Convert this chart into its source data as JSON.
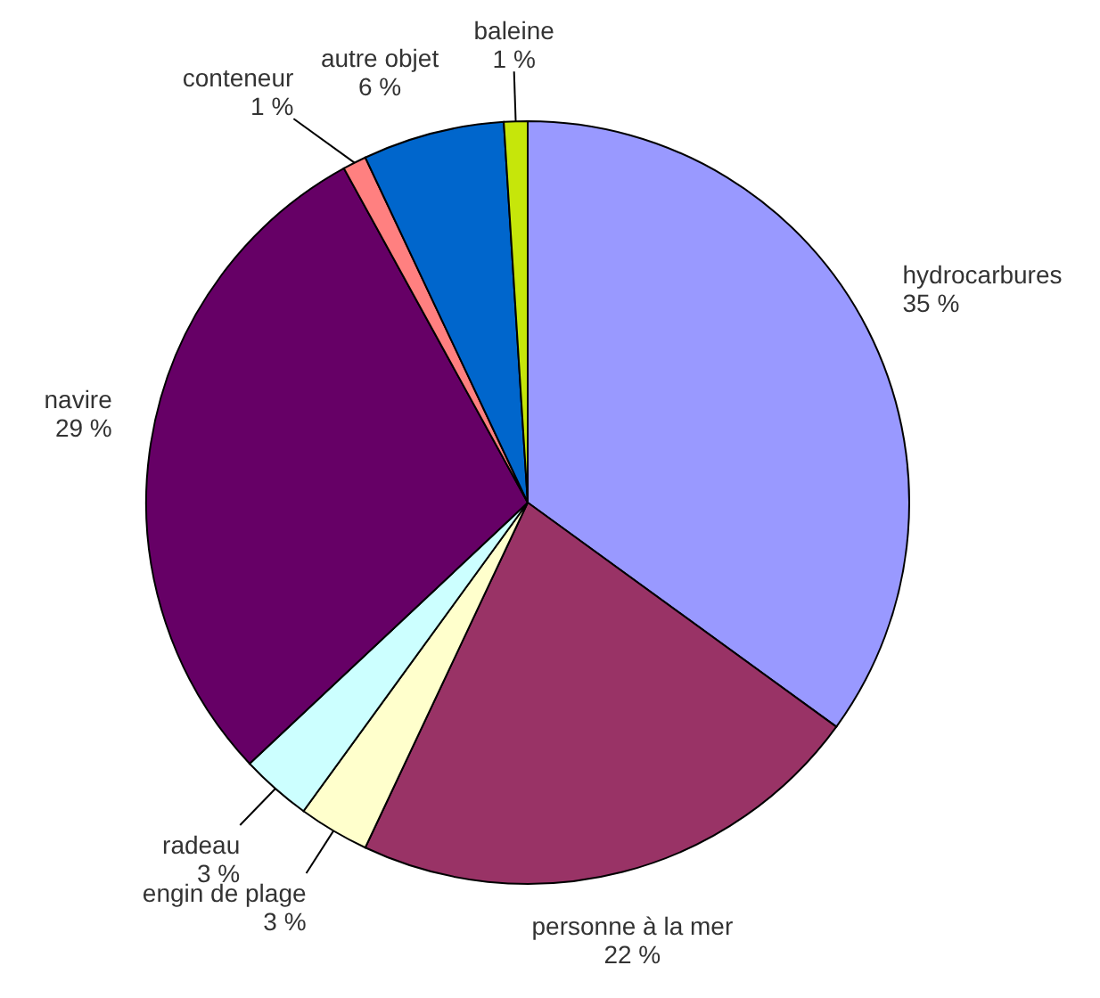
{
  "chart_data": {
    "type": "pie",
    "categories": [
      "hydrocarbures",
      "personne à la mer",
      "engin de plage",
      "radeau",
      "navire",
      "conteneur",
      "autre objet",
      "baleine"
    ],
    "values": [
      35,
      22,
      3,
      3,
      29,
      1,
      6,
      1
    ],
    "colors": [
      "#9999ff",
      "#993366",
      "#ffffcc",
      "#ccffff",
      "#660066",
      "#ff8080",
      "#0066cc",
      "#c6e60a"
    ],
    "value_labels": [
      "35 %",
      "22 %",
      "3 %",
      "3 %",
      "29 %",
      "1 %",
      "6 %",
      "1 %"
    ]
  }
}
